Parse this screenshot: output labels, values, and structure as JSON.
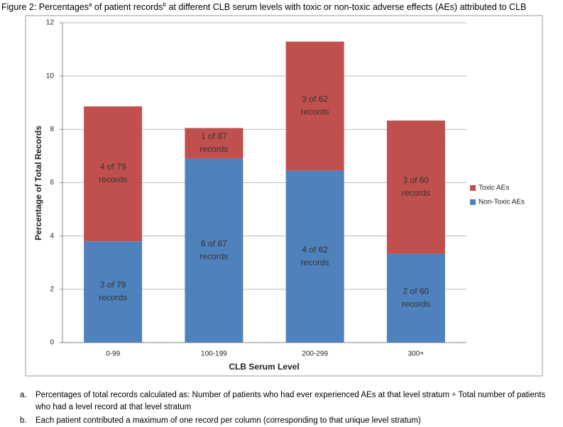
{
  "caption": [
    "Figure 2: Percentages",
    "a",
    " of patient records",
    "b",
    " at different CLB serum levels with toxic or non-toxic adverse effects (AEs) attributed to CLB"
  ],
  "chart_data": {
    "type": "stacked_bar",
    "x_label": "CLB Serum Level",
    "y_label": "Percentage of Total Records",
    "categories": [
      "0-99",
      "100-199",
      "200-299",
      "300+"
    ],
    "series": [
      {
        "name": "Non-Toxic AEs",
        "color": "#4f81bd",
        "values": [
          3.8,
          6.9,
          6.45,
          3.33
        ],
        "value_labels": [
          "3 of 79 records",
          "6 of 87 records",
          "4 of 62 records",
          "2 of 60 records"
        ]
      },
      {
        "name": "Toxic AEs",
        "color": "#c0504d",
        "values": [
          5.06,
          1.15,
          4.84,
          5.0
        ],
        "value_labels": [
          "4 of 79 records",
          "1 of 87 records",
          "3 of 62 records",
          "3 of 60 records"
        ]
      }
    ],
    "ylim": [
      0,
      12
    ],
    "yticks": [
      0,
      2,
      4,
      6,
      8,
      10,
      12
    ],
    "grid": true,
    "legend": "right"
  },
  "footnotes": [
    {
      "marker": "a.",
      "text": "Percentages of total records calculated as: Number of patients who had ever experienced AEs at that level stratum ÷ Total number of patients who had a level record at that level stratum"
    },
    {
      "marker": "b.",
      "text": "Each patient contributed a maximum of one record per column (corresponding to that unique level stratum)"
    }
  ]
}
